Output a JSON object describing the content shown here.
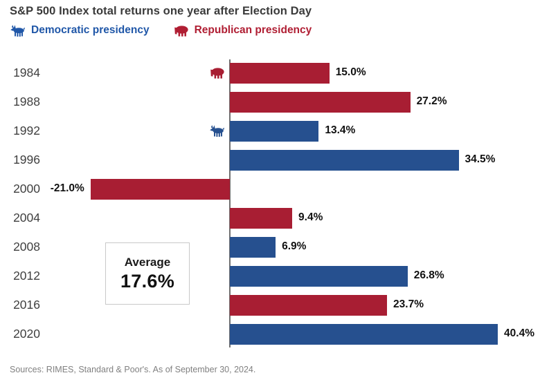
{
  "title": "S&P 500 Index total returns one year after Election Day",
  "legend": {
    "democratic": {
      "label": "Democratic presidency",
      "icon": "donkey-icon",
      "color": "#2057A8"
    },
    "republican": {
      "label": "Republican presidency",
      "icon": "elephant-icon",
      "color": "#B01E33"
    }
  },
  "average_box": {
    "label": "Average",
    "value": "17.6%"
  },
  "source": "Sources: RIMES, Standard & Poor's. As of September 30, 2024.",
  "colors": {
    "democratic_bar": "#26508F",
    "republican_bar": "#A81E33",
    "axis": "#707070"
  },
  "chart_data": {
    "type": "bar",
    "orientation": "horizontal",
    "title": "S&P 500 Index total returns one year after Election Day",
    "xlabel": "",
    "ylabel": "",
    "xlim": [
      -25,
      45
    ],
    "grid": false,
    "legend_position": "top-left",
    "categories": [
      "1984",
      "1988",
      "1992",
      "1996",
      "2000",
      "2004",
      "2008",
      "2012",
      "2016",
      "2020"
    ],
    "series": [
      {
        "name": "S&P 500 total return one year after Election Day (%)",
        "values": [
          15.0,
          27.2,
          13.4,
          34.5,
          -21.0,
          9.4,
          6.9,
          26.8,
          23.7,
          40.4
        ]
      }
    ],
    "points": [
      {
        "year": "1984",
        "value": 15.0,
        "label": "15.0%",
        "party": "republican",
        "marker": "elephant-icon"
      },
      {
        "year": "1988",
        "value": 27.2,
        "label": "27.2%",
        "party": "republican",
        "marker": null
      },
      {
        "year": "1992",
        "value": 13.4,
        "label": "13.4%",
        "party": "democratic",
        "marker": "donkey-icon"
      },
      {
        "year": "1996",
        "value": 34.5,
        "label": "34.5%",
        "party": "democratic",
        "marker": null
      },
      {
        "year": "2000",
        "value": -21.0,
        "label": "-21.0%",
        "party": "republican",
        "marker": null
      },
      {
        "year": "2004",
        "value": 9.4,
        "label": "9.4%",
        "party": "republican",
        "marker": null
      },
      {
        "year": "2008",
        "value": 6.9,
        "label": "6.9%",
        "party": "democratic",
        "marker": null
      },
      {
        "year": "2012",
        "value": 26.8,
        "label": "26.8%",
        "party": "democratic",
        "marker": null
      },
      {
        "year": "2016",
        "value": 23.7,
        "label": "23.7%",
        "party": "republican",
        "marker": null
      },
      {
        "year": "2020",
        "value": 40.4,
        "label": "40.4%",
        "party": "democratic",
        "marker": null
      }
    ],
    "annotations": [
      {
        "text": "Average",
        "value": "17.6%"
      }
    ]
  }
}
